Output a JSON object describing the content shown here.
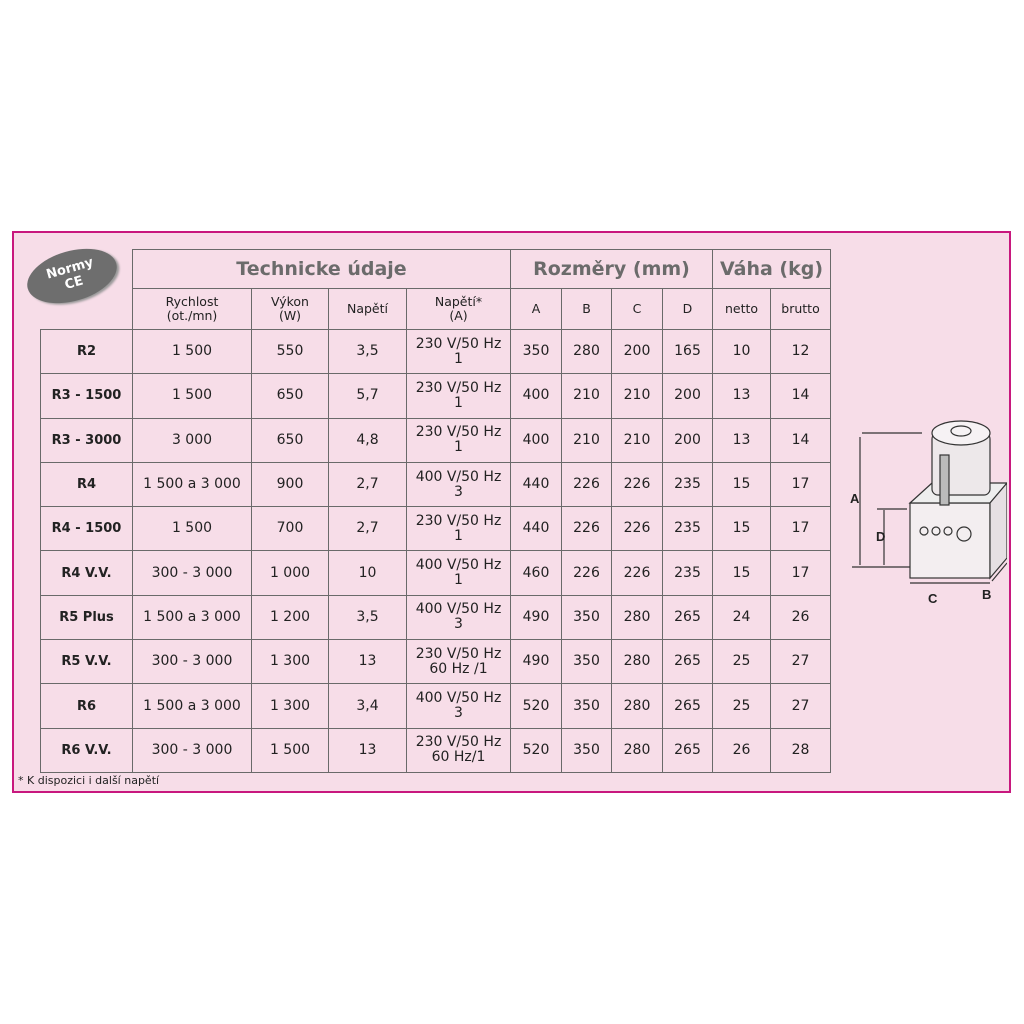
{
  "badge": {
    "line1": "Normy",
    "line2": "CE"
  },
  "header": {
    "group_tech": "Technicke údaje",
    "group_dims": "Rozměry (mm)",
    "group_weight": "Váha (kg)",
    "columns": [
      {
        "l1": "Rychlost",
        "l2": "(ot./mn)"
      },
      {
        "l1": "Výkon",
        "l2": "(W)"
      },
      {
        "l1": "Napětí",
        "l2": ""
      },
      {
        "l1": "Napětí*",
        "l2": "(A)"
      },
      {
        "l1": "A",
        "l2": ""
      },
      {
        "l1": "B",
        "l2": ""
      },
      {
        "l1": "C",
        "l2": ""
      },
      {
        "l1": "D",
        "l2": ""
      },
      {
        "l1": "netto",
        "l2": ""
      },
      {
        "l1": "brutto",
        "l2": ""
      }
    ]
  },
  "rows": [
    {
      "model": "R2",
      "speed": "1 500",
      "power": "550",
      "current": "3,5",
      "volt1": "230 V/50 Hz",
      "volt2": "1",
      "A": "350",
      "B": "280",
      "C": "200",
      "D": "165",
      "netto": "10",
      "brutto": "12"
    },
    {
      "model": "R3 - 1500",
      "speed": "1 500",
      "power": "650",
      "current": "5,7",
      "volt1": "230 V/50 Hz",
      "volt2": "1",
      "A": "400",
      "B": "210",
      "C": "210",
      "D": "200",
      "netto": "13",
      "brutto": "14"
    },
    {
      "model": "R3 - 3000",
      "speed": "3 000",
      "power": "650",
      "current": "4,8",
      "volt1": "230 V/50 Hz",
      "volt2": "1",
      "A": "400",
      "B": "210",
      "C": "210",
      "D": "200",
      "netto": "13",
      "brutto": "14"
    },
    {
      "model": "R4",
      "speed": "1 500 a 3 000",
      "power": "900",
      "current": "2,7",
      "volt1": "400 V/50 Hz",
      "volt2": "3",
      "A": "440",
      "B": "226",
      "C": "226",
      "D": "235",
      "netto": "15",
      "brutto": "17"
    },
    {
      "model": "R4 - 1500",
      "speed": "1 500",
      "power": "700",
      "current": "2,7",
      "volt1": "230 V/50 Hz",
      "volt2": "1",
      "A": "440",
      "B": "226",
      "C": "226",
      "D": "235",
      "netto": "15",
      "brutto": "17"
    },
    {
      "model": "R4 V.V.",
      "speed": "300 - 3 000",
      "power": "1 000",
      "current": "10",
      "volt1": "400 V/50 Hz",
      "volt2": "1",
      "A": "460",
      "B": "226",
      "C": "226",
      "D": "235",
      "netto": "15",
      "brutto": "17"
    },
    {
      "model": "R5 Plus",
      "speed": "1 500 a 3 000",
      "power": "1 200",
      "current": "3,5",
      "volt1": "400 V/50 Hz",
      "volt2": "3",
      "A": "490",
      "B": "350",
      "C": "280",
      "D": "265",
      "netto": "24",
      "brutto": "26"
    },
    {
      "model": "R5 V.V.",
      "speed": "300 - 3 000",
      "power": "1 300",
      "current": "13",
      "volt1": "230 V/50 Hz",
      "volt2": "60 Hz /1",
      "A": "490",
      "B": "350",
      "C": "280",
      "D": "265",
      "netto": "25",
      "brutto": "27"
    },
    {
      "model": "R6",
      "speed": "1 500 a 3 000",
      "power": "1 300",
      "current": "3,4",
      "volt1": "400 V/50 Hz",
      "volt2": "3",
      "A": "520",
      "B": "350",
      "C": "280",
      "D": "265",
      "netto": "25",
      "brutto": "27"
    },
    {
      "model": "R6 V.V.",
      "speed": "300 - 3 000",
      "power": "1 500",
      "current": "13",
      "volt1": "230 V/50 Hz",
      "volt2": "60 Hz/1",
      "A": "520",
      "B": "350",
      "C": "280",
      "D": "265",
      "netto": "26",
      "brutto": "28"
    }
  ],
  "footnote": "* K dispozici i další napětí",
  "diagram": {
    "label_a": "A",
    "label_b": "B",
    "label_c": "C",
    "label_d": "D"
  },
  "colors": {
    "frame": "#c8187e",
    "background": "#f7dde8",
    "badge": "#6e6e6e"
  }
}
